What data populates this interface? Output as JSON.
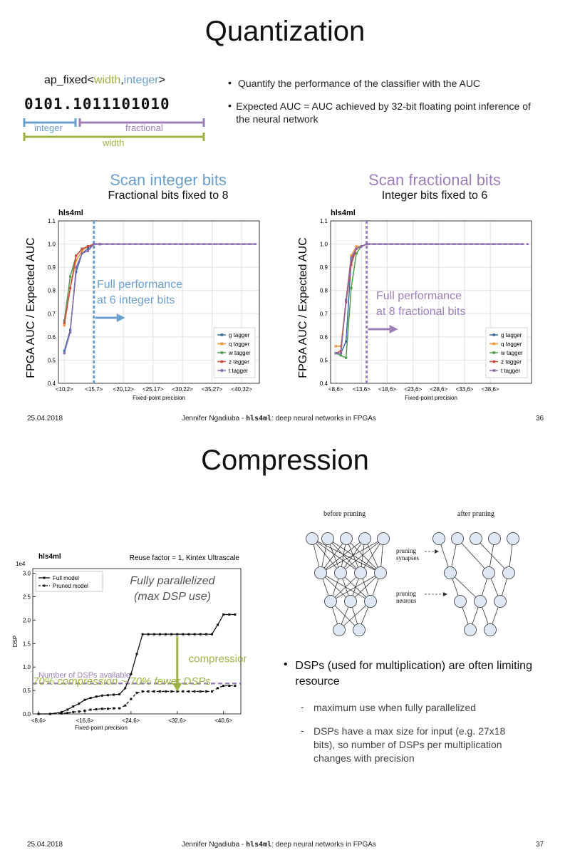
{
  "slide1": {
    "title": "Quantization",
    "ap_fixed": {
      "prefix": "ap_fixed<",
      "width": "width",
      "comma": ",",
      "integer": "integer",
      "suffix": ">",
      "bits": "0101.1011101010",
      "integer_label": "integer",
      "fractional_label": "fractional",
      "width_label": "width"
    },
    "bullets": [
      "Quantify the performance of the classifier with the AUC",
      "Expected AUC = AUC achieved by 32-bit floating point inference of the neural network"
    ],
    "left_panel": {
      "title": "Scan integer bits",
      "subtitle": "Fractional bits fixed to 8"
    },
    "right_panel": {
      "title": "Scan fractional bits",
      "subtitle": "Integer bits fixed to 6"
    },
    "footer": {
      "date": "25.04.2018",
      "author": "Jennifer Ngadiuba - ",
      "tool": "hls4ml",
      "rest": ": deep neural networks in FPGAs",
      "page": "36"
    }
  },
  "slide2": {
    "title": "Compression",
    "bullet": "DSPs (used for multiplication) are often limiting resource",
    "sub_bullets": [
      "maximum use when fully parallelized",
      "DSPs have a max size for input (e.g. 27x18 bits), so number of DSPs per multiplication changes with precision"
    ],
    "compression_note": "70% compression ~ 70% fewer DSPs",
    "pruning": {
      "before_label": "before pruning",
      "after_label": "after pruning",
      "synapses_label": [
        "pruning",
        "synapses"
      ],
      "neurons_label": [
        "pruning",
        "neurons"
      ]
    },
    "footer": {
      "date": "25.04.2018",
      "author": "Jennifer Ngadiuba - ",
      "tool": "hls4ml",
      "rest": ": deep neural networks in FPGAs",
      "page": "37"
    }
  },
  "colors": {
    "blue_accent": "#6a9fcd",
    "purple_accent": "#9d7fb8",
    "green_accent": "#9cb443",
    "g_tagger": "#3b6ea5",
    "q_tagger": "#f0903a",
    "w_tagger": "#4e9a4e",
    "z_tagger": "#c94a3d",
    "t_tagger": "#8a6bb0"
  },
  "chart_data": [
    {
      "type": "line",
      "tag": "hls4ml",
      "xlabel": "Fixed-point precision",
      "ylabel": "FPGA AUC / Expected AUC",
      "ylim": [
        0.4,
        1.1
      ],
      "yticks": [
        "0.4",
        "0.5",
        "0.6",
        "0.7",
        "0.8",
        "0.9",
        "1.0",
        "1.1"
      ],
      "x": [
        10,
        11,
        12,
        13,
        14,
        15,
        16,
        17,
        18,
        19,
        20,
        21,
        22,
        23,
        24,
        25,
        26,
        27,
        28,
        29,
        30,
        31,
        32,
        33,
        34,
        35,
        36,
        37,
        38,
        39,
        40,
        41,
        42
      ],
      "xtick_labels": [
        "<10,2>",
        "<15,7>",
        "<20,12>",
        "<25,17>",
        "<30,22>",
        "<35,27>",
        "<40,32>"
      ],
      "xtick_positions": [
        10,
        15,
        20,
        25,
        30,
        35,
        40
      ],
      "xlim": [
        9,
        43
      ],
      "vline": 15,
      "annotation": [
        "Full performance",
        "at 6 integer bits"
      ],
      "legend": "bottom-right",
      "series": [
        {
          "name": "g tagger",
          "values": [
            0.54,
            0.63,
            0.88,
            0.96,
            0.98,
            1.0,
            1.0,
            1.0,
            1.0,
            1.0,
            1.0,
            1.0,
            1.0,
            1.0,
            1.0,
            1.0,
            1.0,
            1.0,
            1.0,
            1.0,
            1.0,
            1.0,
            1.0,
            1.0,
            1.0,
            1.0,
            1.0,
            1.0,
            1.0,
            1.0,
            1.0,
            1.0,
            1.0
          ]
        },
        {
          "name": "q tagger",
          "values": [
            0.65,
            0.81,
            0.93,
            0.97,
            0.99,
            1.0,
            1.0,
            1.0,
            1.0,
            1.0,
            1.0,
            1.0,
            1.0,
            1.0,
            1.0,
            1.0,
            1.0,
            1.0,
            1.0,
            1.0,
            1.0,
            1.0,
            1.0,
            1.0,
            1.0,
            1.0,
            1.0,
            1.0,
            1.0,
            1.0,
            1.0,
            1.0,
            1.0
          ]
        },
        {
          "name": "w tagger",
          "values": [
            0.67,
            0.86,
            0.95,
            0.98,
            0.99,
            1.0,
            1.0,
            1.0,
            1.0,
            1.0,
            1.0,
            1.0,
            1.0,
            1.0,
            1.0,
            1.0,
            1.0,
            1.0,
            1.0,
            1.0,
            1.0,
            1.0,
            1.0,
            1.0,
            1.0,
            1.0,
            1.0,
            1.0,
            1.0,
            1.0,
            1.0,
            1.0,
            1.0
          ]
        },
        {
          "name": "z tagger",
          "values": [
            0.66,
            0.81,
            0.95,
            0.98,
            0.99,
            1.0,
            1.0,
            1.0,
            1.0,
            1.0,
            1.0,
            1.0,
            1.0,
            1.0,
            1.0,
            1.0,
            1.0,
            1.0,
            1.0,
            1.0,
            1.0,
            1.0,
            1.0,
            1.0,
            1.0,
            1.0,
            1.0,
            1.0,
            1.0,
            1.0,
            1.0,
            1.0,
            1.0
          ]
        },
        {
          "name": "t tagger",
          "values": [
            0.53,
            0.62,
            0.9,
            0.96,
            0.97,
            1.0,
            1.0,
            1.0,
            1.0,
            1.0,
            1.0,
            1.0,
            1.0,
            1.0,
            1.0,
            1.0,
            1.0,
            1.0,
            1.0,
            1.0,
            1.0,
            1.0,
            1.0,
            1.0,
            1.0,
            1.0,
            1.0,
            1.0,
            1.0,
            1.0,
            1.0,
            1.0,
            1.0
          ]
        }
      ]
    },
    {
      "type": "line",
      "tag": "hls4ml",
      "xlabel": "Fixed-point precision",
      "ylabel": "FPGA AUC / Expected AUC",
      "ylim": [
        0.4,
        1.1
      ],
      "yticks": [
        "0.4",
        "0.5",
        "0.6",
        "0.7",
        "0.8",
        "0.9",
        "1.0",
        "1.1"
      ],
      "x": [
        8,
        9,
        10,
        11,
        12,
        13,
        14,
        15,
        16,
        17,
        18,
        19,
        20,
        21,
        22,
        23,
        24,
        25,
        26,
        27,
        28,
        29,
        30,
        31,
        32,
        33,
        34,
        35,
        36,
        37,
        38,
        39,
        40,
        41,
        42,
        43,
        44
      ],
      "xtick_labels": [
        "<8,6>",
        "<13,6>",
        "<18,6>",
        "<23,6>",
        "<28,6>",
        "<33,6>",
        "<38,6>"
      ],
      "xtick_positions": [
        8,
        13,
        18,
        23,
        28,
        33,
        38
      ],
      "xlim": [
        7,
        46
      ],
      "vline": 14,
      "annotation": [
        "Full performance",
        "at 8 fractional bits"
      ],
      "legend": "bottom-right",
      "series": [
        {
          "name": "g tagger",
          "values": [
            0.53,
            0.53,
            0.58,
            0.93,
            0.98,
            0.99,
            1.0,
            1.0,
            1.0,
            1.0,
            1.0,
            1.0,
            1.0,
            1.0,
            1.0,
            1.0,
            1.0,
            1.0,
            1.0,
            1.0,
            1.0,
            1.0,
            1.0,
            1.0,
            1.0,
            1.0,
            1.0,
            1.0,
            1.0,
            1.0,
            1.0,
            1.0,
            1.0,
            1.0,
            1.0,
            1.0,
            1.0
          ]
        },
        {
          "name": "q tagger",
          "values": [
            0.56,
            0.56,
            0.76,
            0.95,
            0.99,
            0.99,
            1.0,
            1.0,
            1.0,
            1.0,
            1.0,
            1.0,
            1.0,
            1.0,
            1.0,
            1.0,
            1.0,
            1.0,
            1.0,
            1.0,
            1.0,
            1.0,
            1.0,
            1.0,
            1.0,
            1.0,
            1.0,
            1.0,
            1.0,
            1.0,
            1.0,
            1.0,
            1.0,
            1.0,
            1.0,
            1.0,
            1.0
          ]
        },
        {
          "name": "w tagger",
          "values": [
            0.53,
            0.52,
            0.51,
            0.81,
            0.96,
            0.99,
            1.0,
            1.0,
            1.0,
            1.0,
            1.0,
            1.0,
            1.0,
            1.0,
            1.0,
            1.0,
            1.0,
            1.0,
            1.0,
            1.0,
            1.0,
            1.0,
            1.0,
            1.0,
            1.0,
            1.0,
            1.0,
            1.0,
            1.0,
            1.0,
            1.0,
            1.0,
            1.0,
            1.0,
            1.0,
            1.0,
            1.0
          ]
        },
        {
          "name": "z tagger",
          "values": [
            0.53,
            0.54,
            0.75,
            0.91,
            0.98,
            0.99,
            1.0,
            1.0,
            1.0,
            1.0,
            1.0,
            1.0,
            1.0,
            1.0,
            1.0,
            1.0,
            1.0,
            1.0,
            1.0,
            1.0,
            1.0,
            1.0,
            1.0,
            1.0,
            1.0,
            1.0,
            1.0,
            1.0,
            1.0,
            1.0,
            1.0,
            1.0,
            1.0,
            1.0,
            1.0,
            1.0,
            1.0
          ]
        },
        {
          "name": "t tagger",
          "values": [
            0.53,
            0.53,
            0.76,
            0.94,
            0.98,
            0.99,
            1.0,
            1.0,
            1.0,
            1.0,
            1.0,
            1.0,
            1.0,
            1.0,
            1.0,
            1.0,
            1.0,
            1.0,
            1.0,
            1.0,
            1.0,
            1.0,
            1.0,
            1.0,
            1.0,
            1.0,
            1.0,
            1.0,
            1.0,
            1.0,
            1.0,
            1.0,
            1.0,
            1.0,
            1.0,
            1.0,
            1.0
          ]
        }
      ]
    },
    {
      "type": "line",
      "tag": "hls4ml",
      "title": "Reuse factor = 1, Kintex Ultrascale",
      "xlabel": "Fixed-point precision",
      "ylabel": "DSP",
      "y_multiplier": "1e4",
      "ylim": [
        0,
        3.1
      ],
      "yticks": [
        "0.0",
        "0.5",
        "1.0",
        "1.5",
        "2.0",
        "2.5",
        "3.0"
      ],
      "xlim": [
        7,
        43
      ],
      "xtick_labels": [
        "<8,6>",
        "<16,6>",
        "<24,6>",
        "<32,6>",
        "<40,6>"
      ],
      "xtick_positions": [
        8,
        16,
        24,
        32,
        40
      ],
      "hline": 0.65,
      "hline_label": "Number of DSPs available",
      "inset_text": [
        "Fully parallelized",
        "(max DSP use)"
      ],
      "arrow_label": "compression",
      "legend": "top-left",
      "series": [
        {
          "name": "Full model",
          "x": [
            8,
            10,
            12,
            13,
            14,
            15,
            16,
            17,
            18,
            19,
            20,
            21,
            22,
            23,
            24,
            25,
            26,
            27,
            28,
            29,
            30,
            31,
            32,
            33,
            34,
            35,
            36,
            37,
            38,
            39,
            40,
            41,
            42
          ],
          "values": [
            0.0,
            0.0,
            0.04,
            0.09,
            0.16,
            0.22,
            0.3,
            0.34,
            0.37,
            0.39,
            0.4,
            0.41,
            0.42,
            0.55,
            0.85,
            1.28,
            1.7,
            1.7,
            1.7,
            1.7,
            1.7,
            1.7,
            1.7,
            1.7,
            1.7,
            1.7,
            1.7,
            1.7,
            1.7,
            1.9,
            2.12,
            2.12,
            2.12
          ]
        },
        {
          "name": "Pruned model",
          "x": [
            8,
            10,
            12,
            13,
            14,
            15,
            16,
            17,
            18,
            19,
            20,
            21,
            22,
            23,
            24,
            25,
            26,
            27,
            28,
            29,
            30,
            31,
            32,
            33,
            34,
            35,
            36,
            37,
            38,
            39,
            40,
            41,
            42
          ],
          "values": [
            0.0,
            0.0,
            0.01,
            0.02,
            0.04,
            0.05,
            0.07,
            0.09,
            0.1,
            0.11,
            0.11,
            0.12,
            0.12,
            0.18,
            0.32,
            0.45,
            0.48,
            0.48,
            0.48,
            0.48,
            0.48,
            0.48,
            0.48,
            0.48,
            0.48,
            0.48,
            0.48,
            0.48,
            0.48,
            0.55,
            0.6,
            0.6,
            0.6
          ]
        }
      ]
    }
  ]
}
